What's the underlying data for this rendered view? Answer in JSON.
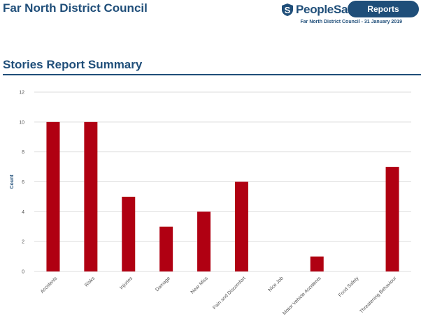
{
  "header": {
    "org_title": "Far North District Council",
    "brand_name": "PeopleSafe",
    "reports_label": "Reports",
    "org_date": "Far North District Council - 31 January 2019"
  },
  "section": {
    "title": "Stories Report Summary"
  },
  "colors": {
    "brand": "#1f4e79",
    "bar": "#b00012",
    "grid": "#dddddd"
  },
  "chart_data": {
    "type": "bar",
    "categories": [
      "Accidents",
      "Risks",
      "Injuries",
      "Damage",
      "Near Miss",
      "Pain and Discomfort",
      "Nice Job",
      "Motor Vehicle Accidents",
      "Food Safety",
      "Threatening Behaviour"
    ],
    "values": [
      10,
      10,
      5,
      3,
      4,
      6,
      0,
      1,
      0,
      7
    ],
    "ylabel": "Count",
    "ylim": [
      0,
      12
    ],
    "yticks": [
      0,
      2,
      4,
      6,
      8,
      10,
      12
    ],
    "grid": true,
    "legend": "none"
  }
}
